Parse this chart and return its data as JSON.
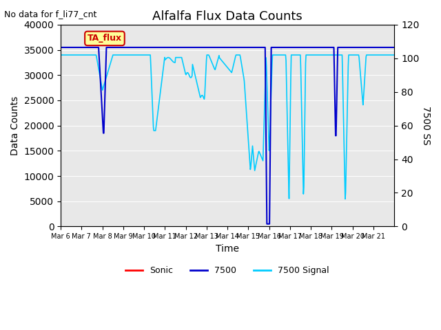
{
  "title": "Alfalfa Flux Data Counts",
  "subtitle": "No data for f_li77_cnt",
  "xlabel": "Time",
  "ylabel_left": "Data Counts",
  "ylabel_right": "7500 SS",
  "ylim_left": [
    0,
    40000
  ],
  "ylim_right": [
    0,
    120
  ],
  "bg_color": "#e8e8e8",
  "legend_entries": [
    "Sonic",
    "7500",
    "7500 Signal"
  ],
  "legend_colors": [
    "#ff0000",
    "#0000cc",
    "#00ccff"
  ],
  "annotation_text": "TA_flux",
  "annotation_color": "#cc0000",
  "annotation_bg": "#ffff99",
  "x_tick_labels": [
    "Mar 6",
    "Mar 7",
    "Mar 8",
    "Mar 9",
    "Mar 10",
    "Mar 11",
    "Mar 12",
    "Mar 13",
    "Mar 14",
    "Mar 15",
    "Mar 16",
    "Mar 17",
    "Mar 18",
    "Mar 19",
    "Mar 20",
    "Mar 21"
  ],
  "line_7500_color": "#0000cc",
  "line_signal_color": "#00ccff",
  "line_sonic_color": "#ff0000",
  "n_days": 16
}
